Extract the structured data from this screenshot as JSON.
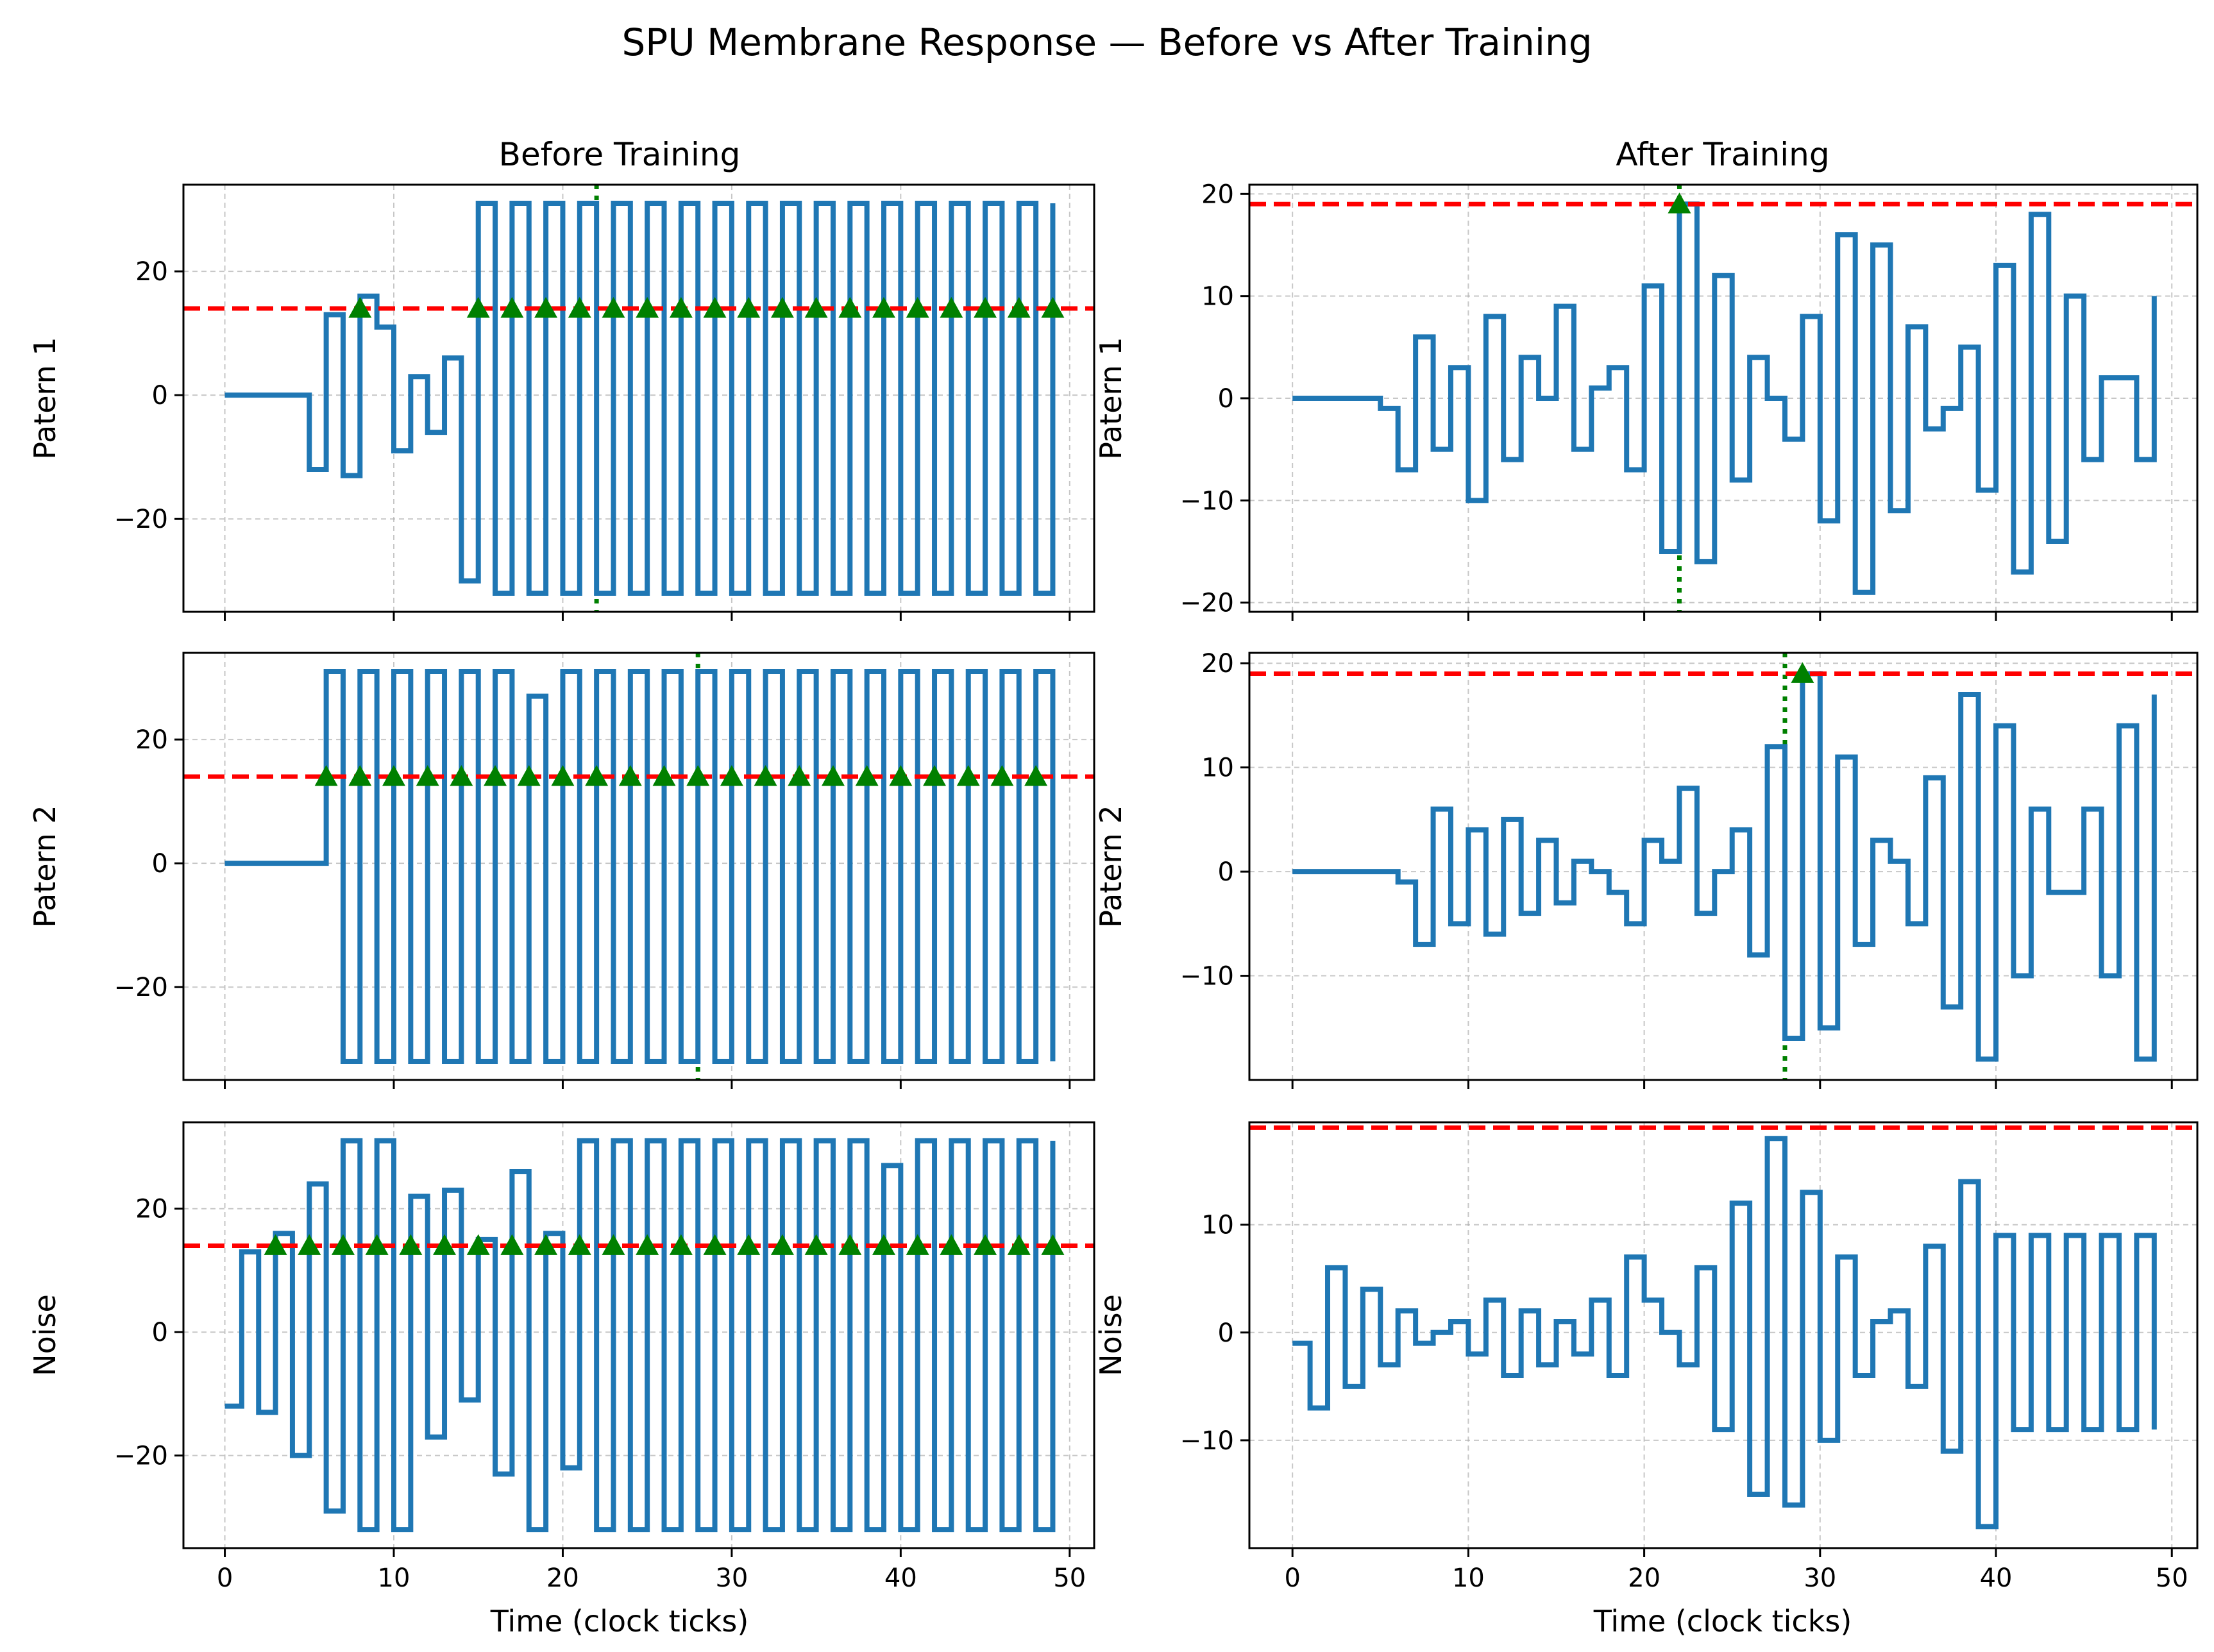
{
  "chart_data": {
    "type": "line",
    "title": "SPU Membrane Response — Before vs After Training",
    "colors": {
      "membrane": "#1f77b4",
      "threshold": "#ff0000",
      "spike": "#008000",
      "grid": "#b0b0b0"
    },
    "xlim": [
      -2.45,
      51.45
    ],
    "xticks": [
      0,
      10,
      20,
      30,
      40,
      50
    ],
    "xlabel": "Time (clock ticks)",
    "series": [
      {
        "name": "membrane",
        "style": "steps-post",
        "color": "#1f77b4"
      },
      {
        "name": "threshold",
        "style": "dashed",
        "color": "#ff0000"
      },
      {
        "name": "spikes",
        "style": "triangle-marker",
        "color": "#008000"
      },
      {
        "name": "target time",
        "style": "dotted",
        "color": "#008000"
      }
    ],
    "columns": [
      {
        "title": "Before Training",
        "key": "before"
      },
      {
        "title": "After Training",
        "key": "after"
      }
    ],
    "subplots": [
      {
        "id": "before-pattern1",
        "column": "Before Training",
        "ylabel": "Patern 1",
        "ylim": [
          -35,
          34
        ],
        "yticks": [
          -20,
          0,
          20
        ],
        "threshold": 14,
        "target_time": 22,
        "spike_level": 14,
        "membrane": [
          0,
          0,
          0,
          0,
          0,
          -12,
          13,
          -13,
          16,
          11,
          -9,
          3,
          -6,
          6,
          -30,
          31,
          -32,
          31,
          -32,
          31,
          -32,
          31,
          -32,
          31,
          -32,
          31,
          -32,
          31,
          -32,
          31,
          -32,
          31,
          -32,
          31,
          -32,
          31,
          -32,
          31,
          -32,
          31,
          -32,
          31,
          -32,
          31,
          -32,
          31,
          -32,
          31,
          -32,
          31
        ],
        "spike_times": [
          8,
          15,
          17,
          19,
          21,
          23,
          25,
          27,
          29,
          31,
          33,
          35,
          37,
          39,
          41,
          43,
          45,
          47,
          49
        ]
      },
      {
        "id": "after-pattern1",
        "column": "After Training",
        "ylabel": "Patern 1",
        "ylim": [
          -20.9,
          20.9
        ],
        "yticks": [
          -20,
          -10,
          0,
          10,
          20
        ],
        "threshold": 19,
        "target_time": 22,
        "spike_level": 19,
        "membrane": [
          0,
          0,
          0,
          0,
          0,
          -1,
          -7,
          6,
          -5,
          3,
          -10,
          8,
          -6,
          4,
          0,
          9,
          -5,
          1,
          3,
          -7,
          11,
          -15,
          19,
          -16,
          12,
          -8,
          4,
          0,
          -4,
          8,
          -12,
          16,
          -19,
          15,
          -11,
          7,
          -3,
          -1,
          5,
          -9,
          13,
          -17,
          18,
          -14,
          10,
          -6,
          2,
          2,
          -6,
          10
        ],
        "spike_times": [
          22
        ]
      },
      {
        "id": "before-pattern2",
        "column": "Before Training",
        "ylabel": "Patern 2",
        "ylim": [
          -35,
          34
        ],
        "yticks": [
          -20,
          0,
          20
        ],
        "threshold": 14,
        "target_time": 28,
        "spike_level": 14,
        "membrane": [
          0,
          0,
          0,
          0,
          0,
          0,
          31,
          -32,
          31,
          -32,
          31,
          -32,
          31,
          -32,
          31,
          -32,
          31,
          -32,
          27,
          -32,
          31,
          -32,
          31,
          -32,
          31,
          -32,
          31,
          -32,
          31,
          -32,
          31,
          -32,
          31,
          -32,
          31,
          -32,
          31,
          -32,
          31,
          -32,
          31,
          -32,
          31,
          -32,
          31,
          -32,
          31,
          -32,
          31,
          -32
        ],
        "spike_times": [
          6,
          8,
          10,
          12,
          14,
          16,
          18,
          20,
          22,
          24,
          26,
          28,
          30,
          32,
          34,
          36,
          38,
          40,
          42,
          44,
          46,
          48
        ]
      },
      {
        "id": "after-pattern2",
        "column": "After Training",
        "ylabel": "Patern 2",
        "ylim": [
          -20,
          21
        ],
        "yticks": [
          -10,
          0,
          10,
          20
        ],
        "threshold": 19,
        "target_time": 28,
        "spike_level": 19,
        "membrane": [
          0,
          0,
          0,
          0,
          0,
          0,
          -1,
          -7,
          6,
          -5,
          4,
          -6,
          5,
          -4,
          3,
          -3,
          1,
          0,
          -2,
          -5,
          3,
          1,
          8,
          -4,
          0,
          4,
          -8,
          12,
          -16,
          19,
          -15,
          11,
          -7,
          3,
          1,
          -5,
          9,
          -13,
          17,
          -18,
          14,
          -10,
          6,
          -2,
          -2,
          6,
          -10,
          14,
          -18,
          17
        ],
        "spike_times": [
          29
        ]
      },
      {
        "id": "before-noise",
        "column": "Before Training",
        "ylabel": "Noise",
        "ylim": [
          -35,
          34
        ],
        "yticks": [
          -20,
          0,
          20
        ],
        "threshold": 14,
        "target_time": null,
        "spike_level": 14,
        "membrane": [
          -12,
          13,
          -13,
          16,
          -20,
          24,
          -29,
          31,
          -32,
          31,
          -32,
          22,
          -17,
          23,
          -11,
          15,
          -23,
          26,
          -32,
          16,
          -22,
          31,
          -32,
          31,
          -32,
          31,
          -32,
          31,
          -32,
          31,
          -32,
          31,
          -32,
          31,
          -32,
          31,
          -32,
          31,
          -32,
          27,
          -32,
          31,
          -32,
          31,
          -32,
          31,
          -32,
          31,
          -32,
          31
        ],
        "spike_times": [
          3,
          5,
          7,
          9,
          11,
          13,
          15,
          17,
          19,
          21,
          23,
          25,
          27,
          29,
          31,
          33,
          35,
          37,
          39,
          41,
          43,
          45,
          47,
          49
        ]
      },
      {
        "id": "after-noise",
        "column": "After Training",
        "ylabel": "Noise",
        "ylim": [
          -20,
          19.5
        ],
        "yticks": [
          -10,
          0,
          10
        ],
        "threshold": 19,
        "target_time": null,
        "spike_level": 19,
        "membrane": [
          -1,
          -7,
          6,
          -5,
          4,
          -3,
          2,
          -1,
          0,
          1,
          -2,
          3,
          -4,
          2,
          -3,
          1,
          -2,
          3,
          -4,
          7,
          3,
          0,
          -3,
          6,
          -9,
          12,
          -15,
          18,
          -16,
          13,
          -10,
          7,
          -4,
          1,
          2,
          -5,
          8,
          -11,
          14,
          -18,
          9,
          -9,
          9,
          -9,
          9,
          -9,
          9,
          -9,
          9,
          -9
        ],
        "spike_times": []
      }
    ]
  }
}
